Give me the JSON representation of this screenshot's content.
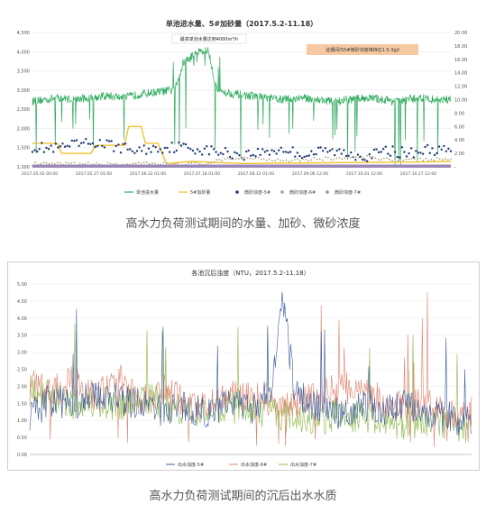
{
  "captions": {
    "top": "高水力负荷测试期间的水量、加砂、微砂浓度",
    "bottom": "高水力负荷测试期间的沉后出水水质"
  },
  "chart_data": [
    {
      "type": "line",
      "title": "单池进水量、5#加砂量（2017.5.2-11.18）",
      "ylim": [
        1000,
        4500
      ],
      "y2lim": [
        0,
        20
      ],
      "yticks": [
        "1,000",
        "1,500",
        "2,000",
        "2,500",
        "3,000",
        "3,500",
        "4,000",
        "4,500"
      ],
      "y2ticks": [
        "-",
        "2.00",
        "4.00",
        "6.00",
        "8.00",
        "10.00",
        "12.00",
        "14.00",
        "16.00",
        "18.00",
        "20.00"
      ],
      "xticks": [
        "2017.05.02 00:00",
        "2017.05.27 01:00",
        "2017.06.22 01:00",
        "2017.07.18 01:00",
        "2017.08.12 01:00",
        "2017.09.06 12:00",
        "2017.10.01 12:00",
        "2017.10.27 12:00"
      ],
      "annotations": [
        "最高单池水量达到4000m³/h",
        "此期间内5#微砂浓度维持在1.5-3g/l"
      ],
      "legend": [
        "单池进水量",
        "5#加砂量",
        "微砂浓度-5#",
        "微砂浓度-6#",
        "微砂浓度-7#"
      ],
      "colors": [
        "#2eaa5c",
        "#f2c230",
        "#1f3b73",
        "#a9a27a",
        "#9b87b8"
      ],
      "series": [
        {
          "name": "单池进水量",
          "axis": "left",
          "baseline": 2750,
          "x": [
            0,
            0.03,
            0.06,
            0.1,
            0.14,
            0.18,
            0.22,
            0.26,
            0.3,
            0.34,
            0.36,
            0.38,
            0.4,
            0.42,
            0.44,
            0.48,
            0.52,
            0.56,
            0.6,
            0.64,
            0.68,
            0.72,
            0.76,
            0.8,
            0.84,
            0.88,
            0.92,
            0.96,
            1
          ],
          "values": [
            2700,
            2750,
            2800,
            2750,
            2800,
            2850,
            2800,
            2900,
            2950,
            3000,
            3700,
            3900,
            4000,
            4050,
            3000,
            2900,
            2850,
            2800,
            2750,
            2800,
            2750,
            2700,
            2750,
            2800,
            2750,
            2700,
            2800,
            2750,
            2750
          ]
        },
        {
          "name": "5#加砂量",
          "axis": "right",
          "x": [
            0,
            0.06,
            0.07,
            0.14,
            0.15,
            0.22,
            0.23,
            0.26,
            0.27,
            0.3,
            0.31,
            0.32,
            0.38,
            0.5,
            0.7,
            0.9,
            1
          ],
          "values": [
            3.5,
            3.5,
            2.0,
            2.0,
            3.2,
            3.2,
            6.0,
            6.0,
            3.5,
            3.5,
            2.0,
            0.5,
            0.8,
            0.5,
            0.6,
            0.7,
            0.8
          ]
        },
        {
          "name": "微砂浓度-5#",
          "axis": "right",
          "x": [
            0,
            0.05,
            0.1,
            0.15,
            0.2,
            0.25,
            0.3,
            0.35,
            0.4,
            0.45,
            0.5,
            0.55,
            0.6,
            0.65,
            0.7,
            0.75,
            0.8,
            0.85,
            0.9,
            0.95,
            1
          ],
          "values": [
            3.0,
            2.6,
            3.2,
            3.6,
            3.0,
            2.4,
            2.8,
            3.0,
            2.6,
            2.2,
            1.8,
            2.2,
            2.6,
            1.8,
            2.4,
            2.0,
            1.6,
            2.4,
            2.0,
            2.6,
            2.2
          ]
        },
        {
          "name": "微砂浓度-6#",
          "axis": "right",
          "x": [
            0,
            0.2,
            0.4,
            0.5,
            0.6,
            0.7,
            0.8,
            0.9,
            1
          ],
          "values": [
            0.4,
            0.4,
            0.4,
            1.4,
            1.0,
            1.2,
            1.4,
            1.0,
            1.2
          ]
        },
        {
          "name": "微砂浓度-7#",
          "axis": "right",
          "x": [
            0,
            0.5,
            1
          ],
          "values": [
            0.1,
            0.1,
            0.1
          ]
        }
      ]
    },
    {
      "type": "line",
      "title": "各池沉后浊度（NTU，2017.5.2-11.18）",
      "ylim": [
        0,
        5
      ],
      "yticks": [
        "0.00",
        "0.50",
        "1.00",
        "1.50",
        "2.00",
        "2.50",
        "3.00",
        "3.50",
        "4.00",
        "4.50",
        "5.00"
      ],
      "legend": [
        "出水浊度-5#",
        "出水浊度-6#",
        "出水浊度-7#"
      ],
      "colors": [
        "#3b5b9a",
        "#e0826e",
        "#8fb84a"
      ],
      "series": [
        {
          "name": "出水浊度-5#",
          "x": [
            0,
            0.05,
            0.1,
            0.15,
            0.2,
            0.25,
            0.3,
            0.35,
            0.4,
            0.45,
            0.5,
            0.55,
            0.57,
            0.6,
            0.65,
            0.7,
            0.75,
            0.8,
            0.85,
            0.9,
            0.95,
            1
          ],
          "values": [
            1.2,
            1.6,
            1.4,
            1.8,
            1.6,
            1.5,
            1.3,
            1.4,
            1.2,
            1.6,
            1.3,
            1.9,
            4.8,
            1.8,
            1.4,
            1.2,
            1.5,
            1.3,
            1.6,
            1.2,
            1.1,
            1.0
          ]
        },
        {
          "name": "出水浊度-6#",
          "x": [
            0,
            0.05,
            0.1,
            0.15,
            0.2,
            0.25,
            0.3,
            0.35,
            0.4,
            0.45,
            0.5,
            0.55,
            0.6,
            0.65,
            0.7,
            0.75,
            0.8,
            0.85,
            0.9,
            0.95,
            1
          ],
          "values": [
            2.0,
            1.8,
            2.2,
            1.6,
            2.4,
            1.5,
            1.9,
            1.6,
            1.4,
            1.7,
            1.8,
            1.6,
            1.5,
            1.7,
            2.0,
            1.8,
            1.6,
            1.4,
            1.5,
            1.3,
            1.2
          ]
        },
        {
          "name": "出水浊度-7#",
          "x": [
            0,
            0.05,
            0.1,
            0.15,
            0.2,
            0.25,
            0.3,
            0.35,
            0.4,
            0.45,
            0.5,
            0.55,
            0.6,
            0.65,
            0.7,
            0.75,
            0.8,
            0.85,
            0.9,
            0.95,
            1
          ],
          "values": [
            1.9,
            1.7,
            1.5,
            1.6,
            1.4,
            1.7,
            1.5,
            1.3,
            1.2,
            1.4,
            1.3,
            1.2,
            1.1,
            1.0,
            1.2,
            1.1,
            1.0,
            0.9,
            1.0,
            0.9,
            0.8
          ]
        }
      ]
    }
  ]
}
